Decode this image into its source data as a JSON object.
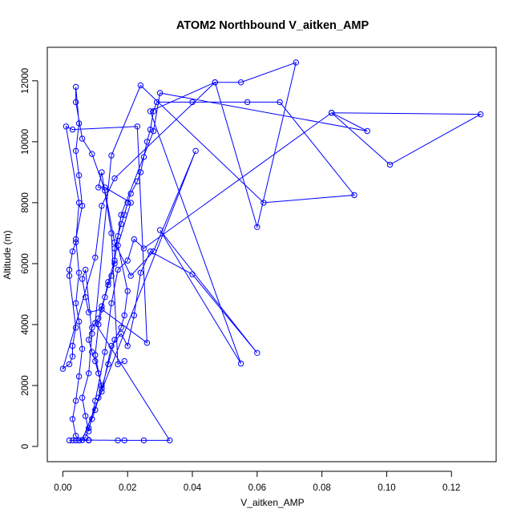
{
  "chart_data": {
    "type": "line",
    "title": "ATOM2 Northbound V_aitken_AMP",
    "xlabel": "V_aitken_AMP",
    "ylabel": "Altitude (m)",
    "xlim": [
      -0.0048,
      0.1338
    ],
    "ylim": [
      -500,
      13100
    ],
    "xticks": [
      0.0,
      0.02,
      0.04,
      0.06,
      0.08,
      0.1,
      0.12
    ],
    "xtick_labels": [
      "0.00",
      "0.02",
      "0.04",
      "0.06",
      "0.08",
      "0.10",
      "0.12"
    ],
    "yticks": [
      0,
      2000,
      4000,
      6000,
      8000,
      10000,
      12000
    ],
    "ytick_labels": [
      "0",
      "2000",
      "4000",
      "6000",
      "8000",
      "10000",
      "12000"
    ],
    "grid": false,
    "legend": "none",
    "series": [
      {
        "color": "#0000ff",
        "marker": "open-circle",
        "points": [
          [
            0.002,
            200
          ],
          [
            0.004,
            200
          ],
          [
            0.006,
            210
          ],
          [
            0.008,
            200
          ],
          [
            0.003,
            200
          ],
          [
            0.005,
            200
          ],
          [
            0.007,
            300
          ],
          [
            0.008,
            600
          ],
          [
            0.009,
            900
          ],
          [
            0.01,
            1200
          ],
          [
            0.011,
            1600
          ],
          [
            0.012,
            2000
          ],
          [
            0.011,
            2400
          ],
          [
            0.01,
            2800
          ],
          [
            0.009,
            3100
          ],
          [
            0.008,
            3500
          ],
          [
            0.009,
            3900
          ],
          [
            0.011,
            4200
          ],
          [
            0.012,
            4600
          ],
          [
            0.013,
            4900
          ],
          [
            0.014,
            5300
          ],
          [
            0.015,
            5600
          ],
          [
            0.016,
            6000
          ],
          [
            0.016,
            6500
          ],
          [
            0.017,
            6900
          ],
          [
            0.018,
            7300
          ],
          [
            0.019,
            7600
          ],
          [
            0.02,
            8000
          ],
          [
            0.021,
            8300
          ],
          [
            0.023,
            8700
          ],
          [
            0.024,
            9000
          ],
          [
            0.025,
            9500
          ],
          [
            0.026,
            10000
          ],
          [
            0.027,
            10400
          ],
          [
            0.028,
            11000
          ],
          [
            0.029,
            11300
          ],
          [
            0.04,
            11300
          ],
          [
            0.057,
            11300
          ],
          [
            0.067,
            11300
          ],
          [
            0.09,
            8250
          ],
          [
            0.062,
            8000
          ],
          [
            0.024,
            11850
          ],
          [
            0.015,
            9550
          ],
          [
            0.01,
            4050
          ],
          [
            0.033,
            200
          ],
          [
            0.025,
            200
          ],
          [
            0.019,
            200
          ],
          [
            0.017,
            200
          ],
          [
            0.008,
            210
          ],
          [
            0.005,
            200
          ],
          [
            0.004,
            350
          ],
          [
            0.003,
            900
          ],
          [
            0.004,
            1500
          ],
          [
            0.005,
            2300
          ],
          [
            0.006,
            3200
          ],
          [
            0.005,
            4100
          ],
          [
            0.004,
            4700
          ],
          [
            0.005,
            5700
          ],
          [
            0.004,
            6800
          ],
          [
            0.006,
            7900
          ],
          [
            0.005,
            8900
          ],
          [
            0.004,
            9700
          ],
          [
            0.005,
            10600
          ],
          [
            0.004,
            11800
          ],
          [
            0.004,
            11300
          ],
          [
            0.006,
            10100
          ],
          [
            0.009,
            9600
          ],
          [
            0.013,
            8400
          ],
          [
            0.016,
            6700
          ],
          [
            0.021,
            5600
          ],
          [
            0.028,
            6400
          ],
          [
            0.041,
            9700
          ],
          [
            0.006,
            210
          ],
          [
            0.012,
            1800
          ],
          [
            0.015,
            3300
          ],
          [
            0.018,
            3700
          ],
          [
            0.02,
            3300
          ],
          [
            0.022,
            4300
          ],
          [
            0.024,
            5700
          ],
          [
            0.027,
            6400
          ],
          [
            0.04,
            5650
          ],
          [
            0.06,
            3070
          ],
          [
            0.03,
            7100
          ],
          [
            0.055,
            2720
          ],
          [
            0.027,
            11000
          ],
          [
            0.047,
            11950
          ],
          [
            0.055,
            11950
          ],
          [
            0.072,
            12600
          ],
          [
            0.06,
            7200
          ],
          [
            0.047,
            11950
          ],
          [
            0.016,
            8800
          ],
          [
            0.012,
            7900
          ],
          [
            0.01,
            6200
          ],
          [
            0.0,
            2550
          ],
          [
            0.002,
            2700
          ],
          [
            0.003,
            2950
          ],
          [
            0.003,
            3300
          ],
          [
            0.004,
            3900
          ],
          [
            0.002,
            5600
          ],
          [
            0.002,
            5800
          ],
          [
            0.003,
            6400
          ],
          [
            0.004,
            6700
          ],
          [
            0.005,
            8000
          ],
          [
            0.001,
            10500
          ],
          [
            0.003,
            10400
          ],
          [
            0.023,
            10500
          ],
          [
            0.026,
            3400
          ],
          [
            0.012,
            4500
          ],
          [
            0.008,
            4400
          ],
          [
            0.007,
            4900
          ],
          [
            0.006,
            5500
          ],
          [
            0.007,
            5800
          ],
          [
            0.009,
            3700
          ],
          [
            0.008,
            2400
          ],
          [
            0.006,
            1600
          ],
          [
            0.007,
            1000
          ],
          [
            0.008,
            500
          ],
          [
            0.01,
            1500
          ],
          [
            0.013,
            3100
          ],
          [
            0.015,
            4700
          ],
          [
            0.017,
            5800
          ],
          [
            0.02,
            6100
          ],
          [
            0.022,
            6800
          ],
          [
            0.025,
            6500
          ],
          [
            0.083,
            10950
          ],
          [
            0.129,
            10900
          ],
          [
            0.101,
            9250
          ],
          [
            0.083,
            10950
          ],
          [
            0.094,
            10350
          ],
          [
            0.03,
            11600
          ],
          [
            0.028,
            10350
          ],
          [
            0.018,
            7600
          ],
          [
            0.016,
            6100
          ],
          [
            0.014,
            5400
          ],
          [
            0.011,
            4000
          ],
          [
            0.01,
            3000
          ],
          [
            0.012,
            1900
          ],
          [
            0.014,
            2700
          ],
          [
            0.016,
            3500
          ],
          [
            0.018,
            3900
          ],
          [
            0.019,
            4300
          ],
          [
            0.02,
            5100
          ],
          [
            0.017,
            6600
          ],
          [
            0.021,
            8000
          ],
          [
            0.013,
            8500
          ],
          [
            0.011,
            8500
          ],
          [
            0.012,
            9000
          ],
          [
            0.015,
            7000
          ],
          [
            0.017,
            2700
          ],
          [
            0.019,
            2800
          ]
        ]
      }
    ]
  }
}
